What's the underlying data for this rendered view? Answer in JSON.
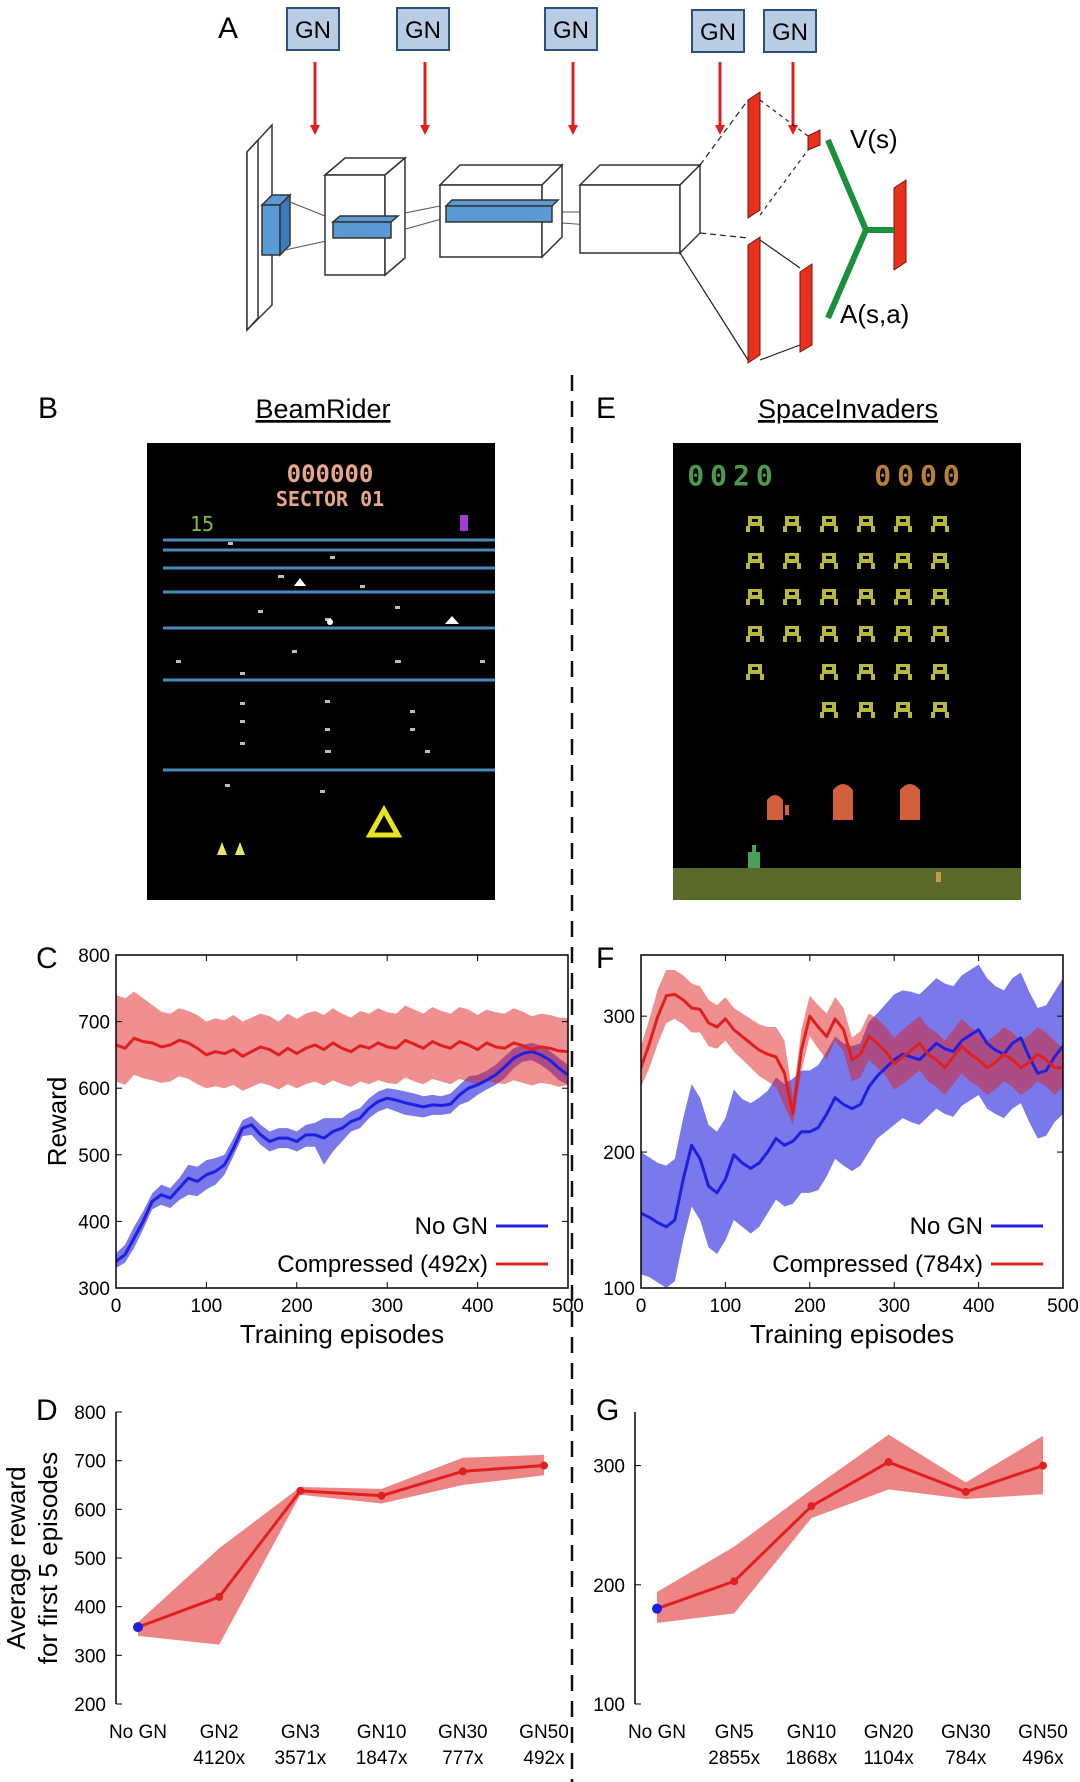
{
  "panel_letters": {
    "A": "A",
    "B": "B",
    "C": "C",
    "D": "D",
    "E": "E",
    "F": "F",
    "G": "G"
  },
  "diagram": {
    "gn_label": "GN",
    "value_label": "V(s)",
    "advantage_label": "A(s,a)",
    "colors": {
      "gn_box": "#b8cce4",
      "gn_border": "#2f4f7f",
      "arrow": "#e02020",
      "fc_bar": "#e8301c",
      "filter": "#5b9bd5",
      "branch": "#1a8f3c"
    }
  },
  "games": {
    "left": {
      "title": "BeamRider",
      "score": "000000",
      "sector": "SECTOR 01",
      "enemies_left": "15"
    },
    "right": {
      "title": "SpaceInvaders",
      "score_p1": "0020",
      "score_p2": "0000"
    }
  },
  "chart_data": [
    {
      "panel": "C",
      "type": "line",
      "title": "",
      "xlabel": "Training episodes",
      "ylabel": "Reward",
      "xlim": [
        0,
        500
      ],
      "ylim": [
        300,
        800
      ],
      "xticks": [
        0,
        100,
        200,
        300,
        400,
        500
      ],
      "yticks": [
        300,
        400,
        500,
        600,
        700,
        800
      ],
      "legend_position": "bottom-right",
      "series": [
        {
          "name": "No GN",
          "color": "#1f1fe0",
          "x": [
            0,
            10,
            20,
            30,
            40,
            50,
            60,
            70,
            80,
            90,
            100,
            110,
            120,
            130,
            140,
            150,
            160,
            170,
            180,
            190,
            200,
            210,
            220,
            230,
            240,
            250,
            260,
            270,
            280,
            290,
            300,
            310,
            320,
            330,
            340,
            350,
            360,
            370,
            380,
            390,
            400,
            410,
            420,
            430,
            440,
            450,
            460,
            470,
            480,
            490,
            500
          ],
          "values": [
            340,
            350,
            375,
            400,
            430,
            440,
            435,
            450,
            465,
            460,
            470,
            475,
            485,
            510,
            540,
            545,
            530,
            520,
            525,
            525,
            520,
            530,
            530,
            525,
            535,
            540,
            550,
            555,
            570,
            580,
            585,
            582,
            578,
            575,
            572,
            575,
            574,
            576,
            590,
            600,
            605,
            612,
            620,
            632,
            645,
            652,
            655,
            650,
            642,
            630,
            620
          ],
          "lower": [
            330,
            338,
            360,
            388,
            418,
            425,
            420,
            432,
            440,
            438,
            448,
            455,
            470,
            498,
            528,
            530,
            515,
            505,
            510,
            510,
            505,
            512,
            512,
            485,
            505,
            520,
            535,
            540,
            555,
            565,
            570,
            565,
            560,
            558,
            556,
            560,
            560,
            562,
            575,
            580,
            590,
            598,
            605,
            615,
            630,
            640,
            642,
            635,
            625,
            612,
            605
          ],
          "upper": [
            352,
            365,
            392,
            415,
            442,
            455,
            450,
            465,
            485,
            482,
            492,
            495,
            500,
            525,
            552,
            558,
            545,
            535,
            540,
            540,
            535,
            545,
            548,
            555,
            555,
            555,
            565,
            570,
            585,
            595,
            600,
            598,
            595,
            592,
            588,
            590,
            588,
            592,
            605,
            618,
            620,
            626,
            635,
            648,
            660,
            665,
            668,
            664,
            656,
            645,
            635
          ]
        },
        {
          "name": "Compressed (492x)",
          "color": "#e02020",
          "x": [
            0,
            10,
            20,
            30,
            40,
            50,
            60,
            70,
            80,
            90,
            100,
            110,
            120,
            130,
            140,
            150,
            160,
            170,
            180,
            190,
            200,
            210,
            220,
            230,
            240,
            250,
            260,
            270,
            280,
            290,
            300,
            310,
            320,
            330,
            340,
            350,
            360,
            370,
            380,
            390,
            400,
            410,
            420,
            430,
            440,
            450,
            460,
            470,
            480,
            490,
            500
          ],
          "values": [
            665,
            660,
            675,
            670,
            668,
            662,
            665,
            672,
            668,
            660,
            650,
            655,
            652,
            658,
            648,
            655,
            662,
            658,
            650,
            660,
            652,
            660,
            665,
            658,
            668,
            660,
            655,
            664,
            660,
            668,
            662,
            660,
            672,
            666,
            660,
            670,
            664,
            660,
            670,
            665,
            658,
            668,
            662,
            660,
            668,
            664,
            658,
            662,
            660,
            656,
            655
          ],
          "lower": [
            610,
            605,
            620,
            615,
            612,
            608,
            610,
            618,
            614,
            606,
            600,
            603,
            600,
            605,
            596,
            602,
            608,
            604,
            598,
            606,
            600,
            606,
            610,
            604,
            612,
            606,
            602,
            610,
            606,
            612,
            608,
            606,
            616,
            610,
            606,
            614,
            610,
            606,
            614,
            610,
            604,
            612,
            608,
            606,
            612,
            608,
            604,
            608,
            606,
            602,
            605
          ],
          "upper": [
            740,
            735,
            745,
            735,
            725,
            715,
            712,
            720,
            716,
            710,
            700,
            705,
            702,
            710,
            700,
            706,
            712,
            708,
            700,
            712,
            704,
            712,
            716,
            710,
            720,
            712,
            706,
            716,
            712,
            720,
            714,
            712,
            724,
            718,
            712,
            722,
            716,
            712,
            722,
            718,
            710,
            718,
            714,
            712,
            720,
            715,
            708,
            712,
            710,
            706,
            705
          ]
        }
      ]
    },
    {
      "panel": "F",
      "type": "line",
      "title": "",
      "xlabel": "Training episodes",
      "ylabel": "",
      "xlim": [
        0,
        500
      ],
      "ylim": [
        100,
        345
      ],
      "xticks": [
        0,
        100,
        200,
        300,
        400,
        500
      ],
      "yticks": [
        100,
        200,
        300
      ],
      "legend_position": "bottom-right",
      "series": [
        {
          "name": "No GN",
          "color": "#1f1fe0",
          "x": [
            0,
            10,
            20,
            30,
            40,
            50,
            60,
            70,
            80,
            90,
            100,
            110,
            120,
            130,
            140,
            150,
            160,
            170,
            180,
            190,
            200,
            210,
            220,
            230,
            240,
            250,
            260,
            270,
            280,
            290,
            300,
            310,
            320,
            330,
            340,
            350,
            360,
            370,
            380,
            390,
            400,
            410,
            420,
            430,
            440,
            450,
            460,
            470,
            480,
            490,
            500
          ],
          "values": [
            155,
            152,
            148,
            145,
            150,
            180,
            205,
            195,
            175,
            170,
            180,
            198,
            192,
            188,
            192,
            200,
            210,
            205,
            208,
            215,
            215,
            218,
            228,
            240,
            235,
            232,
            235,
            248,
            256,
            262,
            268,
            272,
            270,
            268,
            274,
            280,
            276,
            274,
            282,
            286,
            290,
            280,
            275,
            272,
            280,
            284,
            270,
            258,
            260,
            270,
            278
          ],
          "lower": [
            110,
            108,
            104,
            100,
            105,
            135,
            160,
            150,
            130,
            125,
            135,
            150,
            145,
            140,
            145,
            155,
            165,
            160,
            162,
            170,
            170,
            172,
            182,
            195,
            190,
            186,
            190,
            200,
            210,
            215,
            220,
            225,
            222,
            220,
            226,
            232,
            228,
            226,
            234,
            238,
            242,
            232,
            228,
            225,
            232,
            236,
            222,
            210,
            212,
            222,
            228
          ],
          "upper": [
            200,
            196,
            192,
            190,
            195,
            225,
            250,
            240,
            220,
            215,
            225,
            246,
            239,
            236,
            240,
            245,
            255,
            250,
            254,
            260,
            260,
            264,
            274,
            285,
            280,
            278,
            280,
            296,
            302,
            309,
            316,
            319,
            318,
            316,
            322,
            328,
            324,
            322,
            330,
            334,
            338,
            328,
            322,
            319,
            328,
            332,
            318,
            306,
            308,
            318,
            328
          ]
        },
        {
          "name": "Compressed (784x)",
          "color": "#e02020",
          "x": [
            0,
            10,
            20,
            30,
            40,
            50,
            60,
            70,
            80,
            90,
            100,
            110,
            120,
            130,
            140,
            150,
            160,
            170,
            180,
            190,
            200,
            210,
            220,
            230,
            240,
            250,
            260,
            270,
            280,
            290,
            300,
            310,
            320,
            330,
            340,
            350,
            360,
            370,
            380,
            390,
            400,
            410,
            420,
            430,
            440,
            450,
            460,
            470,
            480,
            490,
            500
          ],
          "values": [
            262,
            280,
            300,
            315,
            316,
            312,
            306,
            305,
            295,
            292,
            298,
            290,
            285,
            280,
            275,
            272,
            270,
            258,
            228,
            275,
            300,
            292,
            285,
            298,
            290,
            268,
            272,
            285,
            280,
            274,
            265,
            270,
            275,
            280,
            272,
            268,
            262,
            270,
            278,
            272,
            268,
            262,
            266,
            272,
            268,
            262,
            266,
            272,
            268,
            262,
            262
          ],
          "lower": [
            248,
            262,
            280,
            295,
            298,
            294,
            288,
            288,
            278,
            276,
            282,
            274,
            268,
            262,
            256,
            252,
            248,
            234,
            220,
            260,
            285,
            276,
            268,
            282,
            274,
            252,
            255,
            268,
            262,
            256,
            246,
            250,
            255,
            260,
            252,
            248,
            242,
            250,
            258,
            252,
            248,
            242,
            246,
            252,
            248,
            242,
            246,
            252,
            248,
            242,
            248
          ],
          "upper": [
            278,
            298,
            320,
            334,
            334,
            330,
            324,
            322,
            312,
            308,
            314,
            306,
            302,
            298,
            294,
            292,
            292,
            282,
            240,
            290,
            315,
            308,
            302,
            314,
            306,
            284,
            289,
            302,
            298,
            292,
            284,
            290,
            295,
            300,
            292,
            288,
            282,
            290,
            298,
            292,
            288,
            282,
            286,
            292,
            288,
            282,
            286,
            292,
            288,
            282,
            276
          ]
        }
      ]
    },
    {
      "panel": "D",
      "type": "line",
      "title": "",
      "xlabel": "",
      "ylabel": "Average reward for first 5 episodes",
      "ylabel_lines": [
        "Average reward",
        "for first 5 episodes"
      ],
      "ylim": [
        200,
        800
      ],
      "yticks": [
        200,
        300,
        400,
        500,
        600,
        700,
        800
      ],
      "categories": [
        "No GN",
        "GN2",
        "GN3",
        "GN10",
        "GN30",
        "GN50"
      ],
      "category_sub": [
        "",
        "4120x",
        "3571x",
        "1847x",
        "777x",
        "492x"
      ],
      "baseline": {
        "name": "No GN",
        "value": 358,
        "color": "#1f1fe0"
      },
      "series": [
        {
          "name": "Compressed",
          "color": "#e02020",
          "values": [
            358,
            420,
            638,
            628,
            678,
            690
          ],
          "lower": [
            340,
            322,
            630,
            612,
            650,
            670
          ],
          "upper": [
            368,
            520,
            646,
            642,
            706,
            712
          ]
        }
      ]
    },
    {
      "panel": "G",
      "type": "line",
      "title": "",
      "xlabel": "",
      "ylabel": "",
      "ylim": [
        100,
        345
      ],
      "yticks": [
        100,
        200,
        300
      ],
      "categories": [
        "No GN",
        "GN5",
        "GN10",
        "GN20",
        "GN30",
        "GN50"
      ],
      "category_sub": [
        "",
        "2855x",
        "1868x",
        "1104x",
        "784x",
        "496x"
      ],
      "baseline": {
        "name": "No GN",
        "value": 180,
        "color": "#1f1fe0"
      },
      "series": [
        {
          "name": "Compressed",
          "color": "#e02020",
          "values": [
            180,
            203,
            266,
            303,
            278,
            300
          ],
          "lower": [
            168,
            176,
            256,
            280,
            272,
            276
          ],
          "upper": [
            194,
            232,
            280,
            326,
            286,
            325
          ]
        }
      ]
    }
  ]
}
